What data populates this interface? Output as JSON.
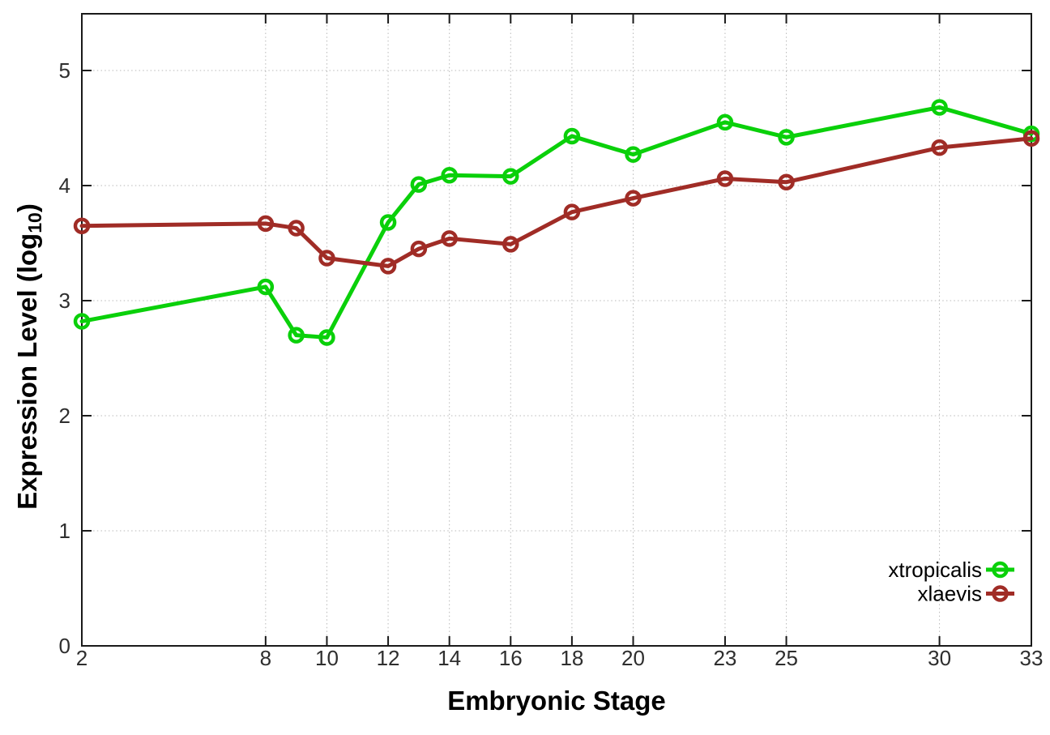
{
  "figure": {
    "background": "#ffffff",
    "text_color": "#000000",
    "grid_color": "#b9b9b9"
  },
  "chart_data": {
    "type": "line",
    "title": "",
    "xlabel": "Embryonic Stage",
    "ylabel": "Expression Level (log10)",
    "ylabel_parts": {
      "prefix": "Expression Level (log",
      "sub": "10",
      "suffix": ")"
    },
    "x": [
      2,
      8,
      9,
      10,
      12,
      13,
      14,
      16,
      18,
      20,
      23,
      25,
      30,
      33
    ],
    "xticks": [
      2,
      8,
      10,
      12,
      14,
      16,
      18,
      20,
      23,
      25,
      30,
      33
    ],
    "yticks": [
      0,
      1,
      2,
      3,
      4,
      5
    ],
    "xlim": [
      2,
      33
    ],
    "ylim": [
      0,
      5.49
    ],
    "grid": true,
    "marker": "open-circle",
    "legend_position": "bottom-right-inside",
    "series": [
      {
        "name": "xtropicalis",
        "color": "#0ad00a",
        "values": [
          2.82,
          3.12,
          2.7,
          2.68,
          3.68,
          4.01,
          4.09,
          4.08,
          4.43,
          4.27,
          4.55,
          4.42,
          4.68,
          4.45
        ]
      },
      {
        "name": "xlaevis",
        "color": "#a02c26",
        "values": [
          3.65,
          3.67,
          3.63,
          3.37,
          3.3,
          3.45,
          3.54,
          3.49,
          3.77,
          3.89,
          4.06,
          4.03,
          4.33,
          4.41
        ]
      }
    ]
  }
}
